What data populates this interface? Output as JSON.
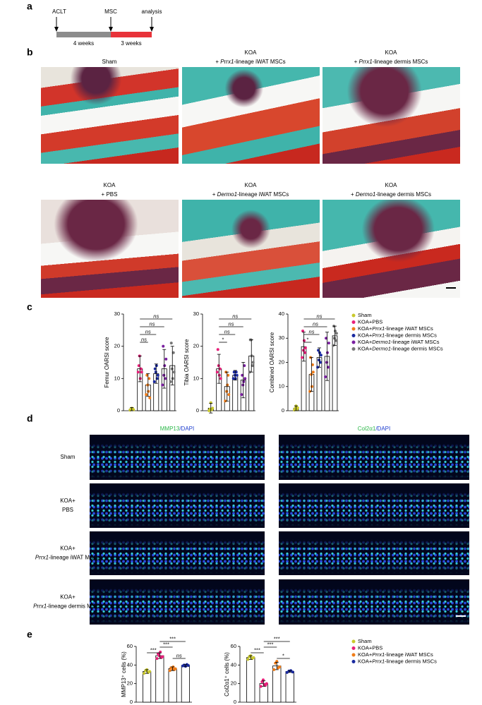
{
  "panel_labels": [
    "a",
    "b",
    "c",
    "d",
    "e"
  ],
  "timeline": {
    "events": [
      "ACLT",
      "MSC",
      "analysis"
    ],
    "periods": [
      {
        "label": "4 weeks",
        "color": "#8c8c8c"
      },
      {
        "label": "3 weeks",
        "color": "#e8333a"
      }
    ]
  },
  "histology": {
    "panels": [
      {
        "lines": [
          [
            "Sham"
          ]
        ]
      },
      {
        "lines": [
          [
            "KOA"
          ],
          [
            "+ ",
            {
              "italic": "Prrx1"
            },
            "-lineage iWAT MSCs"
          ]
        ]
      },
      {
        "lines": [
          [
            "KOA"
          ],
          [
            "+ ",
            {
              "italic": "Prrx1"
            },
            "-lineage dermis  MSCs"
          ]
        ]
      },
      {
        "lines": [
          [
            "KOA"
          ],
          [
            "+ PBS"
          ]
        ]
      },
      {
        "lines": [
          [
            "KOA"
          ],
          [
            "+ ",
            {
              "italic": "Dermo1"
            },
            "-lineage iWAT MSCs"
          ]
        ]
      },
      {
        "lines": [
          [
            "KOA"
          ],
          [
            "+ ",
            {
              "italic": "Dermo1"
            },
            "-lineage dermis MSCs"
          ]
        ]
      }
    ]
  },
  "legend_c": {
    "items": [
      {
        "color": "#c9c92c",
        "segments": [
          "Sham"
        ]
      },
      {
        "color": "#e8207a",
        "segments": [
          "KOA+PBS"
        ]
      },
      {
        "color": "#f07d1a",
        "segments": [
          "KOA+",
          {
            "italic": "Prrx1"
          },
          "-lineage iWAT MSCs"
        ]
      },
      {
        "color": "#1a2aa0",
        "segments": [
          "KOA+",
          {
            "italic": "Prrx1"
          },
          "-lineage dermis MSCs"
        ]
      },
      {
        "color": "#7a1fa0",
        "segments": [
          "KOA+",
          {
            "italic": "Dermo1"
          },
          "-lineage iWAT MSCs"
        ]
      },
      {
        "color": "#777777",
        "segments": [
          "KOA+",
          {
            "italic": "Dermo1"
          },
          "-lineage dermis MSCs"
        ]
      }
    ]
  },
  "fluorescence": {
    "columns": [
      {
        "segments": [
          {
            "text": "MMP13",
            "color": "#2db84a"
          },
          {
            "text": "/DAPI",
            "color": "#1f3fcf"
          }
        ]
      },
      {
        "segments": [
          {
            "text": "Col2α1",
            "color": "#2db84a"
          },
          {
            "text": "/DAPI",
            "color": "#1f3fcf"
          }
        ]
      }
    ],
    "rows": [
      {
        "lines": [
          [
            "Sham"
          ]
        ]
      },
      {
        "lines": [
          [
            "KOA+"
          ],
          [
            "PBS"
          ]
        ]
      },
      {
        "lines": [
          [
            "KOA+"
          ],
          [
            {
              "italic": "Prrx1"
            },
            "-lineage iWAT MSCs"
          ]
        ]
      },
      {
        "lines": [
          [
            "KOA+"
          ],
          [
            {
              "italic": "Prrx1"
            },
            "-lineage dermis MSCs"
          ]
        ]
      }
    ]
  },
  "legend_e": {
    "items": [
      {
        "color": "#c9c92c",
        "segments": [
          "Sham"
        ]
      },
      {
        "color": "#e8207a",
        "segments": [
          "KOA+PBS"
        ]
      },
      {
        "color": "#f07d1a",
        "segments": [
          "KOA+",
          {
            "italic": "Prrx1"
          },
          "-lineage iWAT MSCs"
        ]
      },
      {
        "color": "#1a2aa0",
        "segments": [
          "KOA+",
          {
            "italic": "Prrx1"
          },
          "-lineage dermis MSCs"
        ]
      }
    ]
  },
  "chart_data": [
    {
      "type": "bar",
      "ylabel": "Femur OARSI score",
      "categories": [
        null,
        null,
        null,
        null,
        null,
        null
      ],
      "values": [
        0.5,
        13,
        8,
        11.5,
        13,
        14
      ],
      "errors": [
        0.5,
        4,
        3.5,
        3,
        6,
        6
      ],
      "colors": [
        "#c9c92c",
        "#e8207a",
        "#f07d1a",
        "#1a2aa0",
        "#7a1fa0",
        "#777777"
      ],
      "points": [
        [
          0.2,
          0.5,
          0.8,
          0.6,
          0.3
        ],
        [
          12,
          14,
          17,
          10,
          13,
          12
        ],
        [
          5,
          11,
          8,
          6,
          10,
          4
        ],
        [
          9,
          13,
          12,
          14,
          10,
          11
        ],
        [
          8,
          20,
          11,
          14,
          10,
          16
        ],
        [
          9,
          21,
          13,
          10,
          18,
          12
        ]
      ],
      "ylim": [
        0,
        30
      ],
      "yticks": [
        0,
        10,
        20,
        30
      ],
      "brackets": [
        {
          "from": 1,
          "to": 5,
          "label": "ns"
        },
        {
          "from": 1,
          "to": 4,
          "label": "ns"
        },
        {
          "from": 1,
          "to": 3,
          "label": "ns"
        },
        {
          "from": 1,
          "to": 2,
          "label": "ns"
        }
      ]
    },
    {
      "type": "bar",
      "ylabel": "Tibia OARSI score",
      "categories": [
        null,
        null,
        null,
        null,
        null,
        null
      ],
      "values": [
        0.8,
        13,
        7.5,
        11,
        9.5,
        17
      ],
      "errors": [
        1.5,
        4.5,
        4.5,
        1.5,
        5.5,
        5
      ],
      "colors": [
        "#c9c92c",
        "#e8207a",
        "#f07d1a",
        "#1a2aa0",
        "#7a1fa0",
        "#777777"
      ],
      "points": [
        [
          0,
          0.5,
          2.5,
          0.3,
          0.8
        ],
        [
          12,
          19,
          14,
          11,
          13,
          10
        ],
        [
          3,
          12,
          6,
          8,
          11,
          5
        ],
        [
          10,
          12,
          11,
          10,
          12,
          11
        ],
        [
          5,
          11,
          8,
          9,
          14,
          10
        ],
        [
          12,
          22,
          22,
          17,
          14,
          15
        ]
      ],
      "ylim": [
        0,
        30
      ],
      "yticks": [
        0,
        10,
        20,
        30
      ],
      "brackets": [
        {
          "from": 1,
          "to": 5,
          "label": "ns"
        },
        {
          "from": 1,
          "to": 4,
          "label": "ns"
        },
        {
          "from": 1,
          "to": 3,
          "label": "ns"
        },
        {
          "from": 1,
          "to": 2,
          "label": "*"
        }
      ]
    },
    {
      "type": "bar",
      "ylabel": "Combined OARSI score",
      "categories": [
        null,
        null,
        null,
        null,
        null,
        null
      ],
      "values": [
        1,
        26.5,
        15,
        22,
        22.5,
        31
      ],
      "errors": [
        1,
        6,
        7,
        4,
        10,
        4
      ],
      "colors": [
        "#c9c92c",
        "#e8207a",
        "#f07d1a",
        "#1a2aa0",
        "#7a1fa0",
        "#777777"
      ],
      "points": [
        [
          0.3,
          1,
          2,
          0.5,
          1.2
        ],
        [
          22,
          33,
          25,
          29,
          24,
          26
        ],
        [
          8,
          22,
          15,
          10,
          19,
          16
        ],
        [
          18,
          25,
          21,
          24,
          20,
          23
        ],
        [
          14,
          30,
          20,
          24,
          18,
          28
        ],
        [
          27,
          35,
          30,
          33,
          29,
          32
        ]
      ],
      "ylim": [
        0,
        40
      ],
      "yticks": [
        0,
        10,
        20,
        30,
        40
      ],
      "brackets": [
        {
          "from": 1,
          "to": 5,
          "label": "ns"
        },
        {
          "from": 1,
          "to": 4,
          "label": "ns"
        },
        {
          "from": 1,
          "to": 3,
          "label": "ns"
        },
        {
          "from": 1,
          "to": 2,
          "label": "*"
        }
      ]
    },
    {
      "type": "bar",
      "ylabel": "MMP13⁺ cells (%)",
      "categories": [
        null,
        null,
        null,
        null
      ],
      "values": [
        33,
        50,
        36,
        39.5
      ],
      "errors": [
        2,
        3,
        2,
        1
      ],
      "colors": [
        "#c9c92c",
        "#e8207a",
        "#f07d1a",
        "#1a2aa0"
      ],
      "points": [
        [
          31,
          34,
          35,
          32,
          33
        ],
        [
          47,
          52,
          50,
          54,
          48,
          49
        ],
        [
          34,
          37,
          36,
          38,
          35,
          36
        ],
        [
          39,
          40,
          38.5,
          40.5,
          39.5
        ]
      ],
      "ylim": [
        0,
        60
      ],
      "yticks": [
        0,
        20,
        40,
        60
      ],
      "brackets": [
        {
          "from": 1,
          "to": 3,
          "label": "***"
        },
        {
          "from": 1,
          "to": 2,
          "label": "***"
        },
        {
          "from": 0,
          "to": 1,
          "label": "***"
        },
        {
          "from": 2,
          "to": 3,
          "label": "ns"
        }
      ]
    },
    {
      "type": "bar",
      "ylabel": "Col2α1⁺ cells (%)",
      "categories": [
        null,
        null,
        null,
        null
      ],
      "values": [
        48,
        20,
        39,
        33
      ],
      "errors": [
        2,
        3,
        4,
        1
      ],
      "colors": [
        "#c9c92c",
        "#e8207a",
        "#f07d1a",
        "#1a2aa0"
      ],
      "points": [
        [
          46,
          49,
          50,
          47,
          48
        ],
        [
          17,
          22,
          24,
          19,
          18,
          20
        ],
        [
          35,
          42,
          44,
          37,
          38
        ],
        [
          32,
          33.5,
          34,
          32.5
        ]
      ],
      "ylim": [
        0,
        60
      ],
      "yticks": [
        0,
        20,
        40,
        60
      ],
      "brackets": [
        {
          "from": 1,
          "to": 3,
          "label": "***"
        },
        {
          "from": 1,
          "to": 2,
          "label": "***"
        },
        {
          "from": 0,
          "to": 1,
          "label": "***"
        },
        {
          "from": 2,
          "to": 3,
          "label": "*"
        }
      ]
    }
  ]
}
